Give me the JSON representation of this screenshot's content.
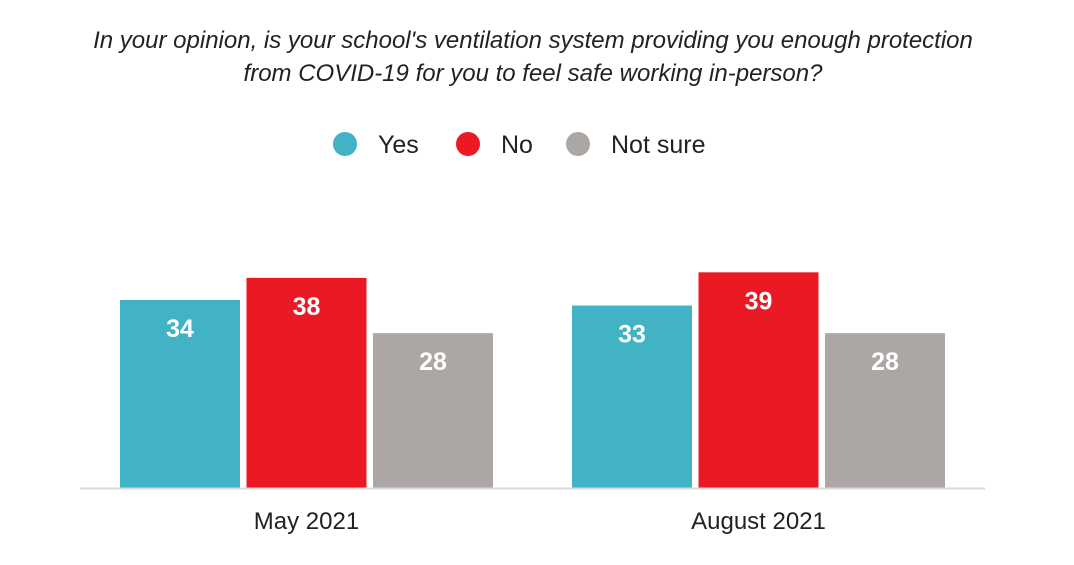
{
  "chart_data": {
    "type": "bar",
    "title": [
      "In your opinion, is your school's ventilation system providing you enough protection",
      "from COVID-19 for you to feel safe working in-person?"
    ],
    "categories": [
      "May 2021",
      "August 2021"
    ],
    "series": [
      {
        "name": "Yes",
        "color": "#42b2c5",
        "values": [
          34,
          33
        ]
      },
      {
        "name": "No",
        "color": "#ea1923",
        "values": [
          38,
          39
        ]
      },
      {
        "name": "Not sure",
        "color": "#aca7a5",
        "values": [
          28,
          28
        ]
      }
    ],
    "xlabel": "",
    "ylabel": "",
    "ylim": [
      0,
      40
    ],
    "grid": false,
    "legend": "top-center"
  }
}
